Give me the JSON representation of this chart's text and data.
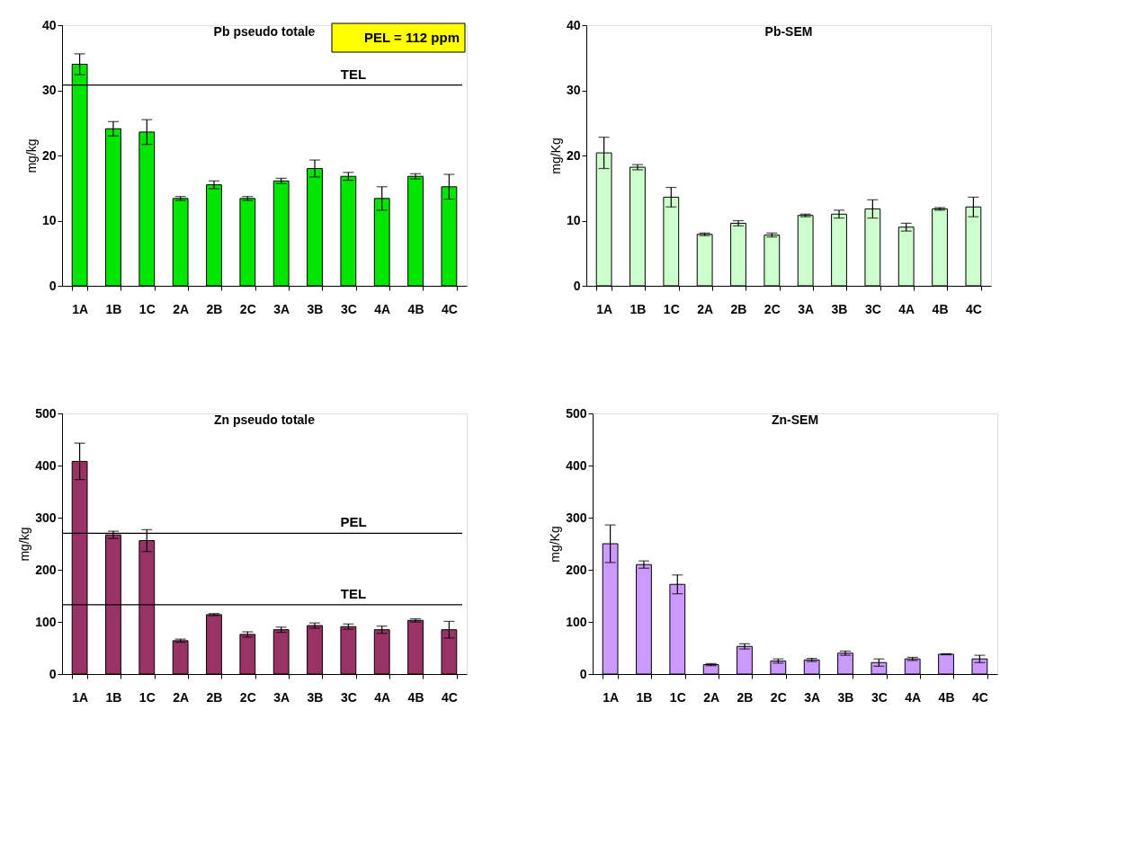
{
  "chart_data": [
    {
      "type": "bar",
      "title": "Pb pseudo totale",
      "ylabel": "mg/kg",
      "categories": [
        "1A",
        "1B",
        "1C",
        "2A",
        "2B",
        "2C",
        "3A",
        "3B",
        "3C",
        "4A",
        "4B",
        "4C"
      ],
      "series": [
        {
          "color": "#00e600",
          "values": [
            34.0,
            24.1,
            23.6,
            13.4,
            15.5,
            13.4,
            16.1,
            18.0,
            16.8,
            13.4,
            16.8,
            15.2
          ],
          "errors": [
            1.6,
            1.1,
            1.9,
            0.3,
            0.6,
            0.3,
            0.4,
            1.3,
            0.6,
            1.8,
            0.4,
            1.9
          ]
        }
      ],
      "ylim": [
        0,
        40
      ],
      "yticks": [
        0,
        10,
        20,
        30,
        40
      ],
      "grid": false,
      "ref_lines": [
        {
          "axis": "y",
          "value": 30.8,
          "label": "TEL"
        }
      ],
      "annotations": [
        "PEL = 112 ppm"
      ]
    },
    {
      "type": "bar",
      "title": "Pb-SEM",
      "ylabel": "mg/Kg",
      "categories": [
        "1A",
        "1B",
        "1C",
        "2A",
        "2B",
        "2C",
        "3A",
        "3B",
        "3C",
        "4A",
        "4B",
        "4C"
      ],
      "series": [
        {
          "color": "#ccffcc",
          "values": [
            20.4,
            18.2,
            13.6,
            7.9,
            9.6,
            7.8,
            10.8,
            11.0,
            11.8,
            9.0,
            11.8,
            12.1
          ],
          "errors": [
            2.4,
            0.4,
            1.5,
            0.2,
            0.4,
            0.3,
            0.2,
            0.6,
            1.4,
            0.6,
            0.2,
            1.5
          ]
        }
      ],
      "ylim": [
        0,
        40
      ],
      "yticks": [
        0,
        10,
        20,
        30,
        40
      ],
      "grid": false
    },
    {
      "type": "bar",
      "title": "Zn pseudo totale",
      "ylabel": "mg/kg",
      "categories": [
        "1A",
        "1B",
        "1C",
        "2A",
        "2B",
        "2C",
        "3A",
        "3B",
        "3C",
        "4A",
        "4B",
        "4C"
      ],
      "series": [
        {
          "color": "#993366",
          "values": [
            408,
            267,
            256,
            64,
            114,
            76,
            85,
            93,
            91,
            85,
            103,
            85
          ],
          "errors": [
            35,
            7,
            21,
            3,
            2,
            5,
            5,
            5,
            5,
            7,
            3,
            16
          ]
        }
      ],
      "ylim": [
        0,
        500
      ],
      "yticks": [
        0,
        100,
        200,
        300,
        400,
        500
      ],
      "grid": false,
      "ref_lines": [
        {
          "axis": "y",
          "value": 270,
          "label": "PEL"
        },
        {
          "axis": "y",
          "value": 133,
          "label": "TEL"
        }
      ]
    },
    {
      "type": "bar",
      "title": "Zn-SEM",
      "ylabel": "mg/Kg",
      "categories": [
        "1A",
        "1B",
        "1C",
        "2A",
        "2B",
        "2C",
        "3A",
        "3B",
        "3C",
        "4A",
        "4B",
        "4C"
      ],
      "series": [
        {
          "color": "#cc99ff",
          "values": [
            250,
            210,
            172,
            18,
            53,
            25,
            27,
            40,
            22,
            29,
            38,
            29
          ],
          "errors": [
            36,
            7,
            18,
            2,
            5,
            4,
            3,
            4,
            7,
            3,
            1,
            7
          ]
        }
      ],
      "ylim": [
        0,
        500
      ],
      "yticks": [
        0,
        100,
        200,
        300,
        400,
        500
      ],
      "grid": false
    }
  ]
}
